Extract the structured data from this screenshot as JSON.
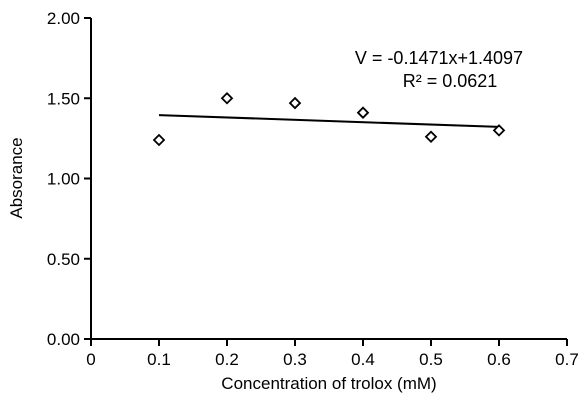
{
  "chart_data": {
    "type": "scatter",
    "xlabel": "Concentration of trolox (mM)",
    "ylabel": "Absorance",
    "xlim": [
      0,
      0.7
    ],
    "ylim": [
      0.0,
      2.0
    ],
    "x_ticks": [
      "0",
      "0.1",
      "0.2",
      "0.3",
      "0.4",
      "0.5",
      "0.6",
      "0.7"
    ],
    "y_ticks": [
      "0.00",
      "0.50",
      "1.00",
      "1.50",
      "2.00"
    ],
    "grid": false,
    "series": [
      {
        "marker": "diamond-open",
        "color": "#000000",
        "points": [
          {
            "x": 0.1,
            "y": 1.24
          },
          {
            "x": 0.2,
            "y": 1.5
          },
          {
            "x": 0.3,
            "y": 1.47
          },
          {
            "x": 0.4,
            "y": 1.41
          },
          {
            "x": 0.5,
            "y": 1.26
          },
          {
            "x": 0.6,
            "y": 1.3
          }
        ]
      }
    ],
    "trendline": {
      "type": "linear",
      "slope": -0.1471,
      "intercept": 1.4097,
      "x_range": [
        0.1,
        0.6
      ],
      "equation_label": "V = -0.1471x+1.4097",
      "r2_label": "R² = 0.0621"
    }
  }
}
